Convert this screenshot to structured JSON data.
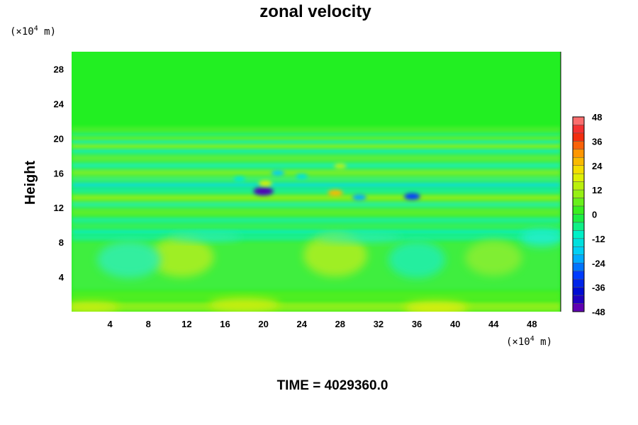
{
  "chart_data": {
    "type": "heatmap",
    "title": "zonal velocity",
    "xlabel": "",
    "ylabel": "Height",
    "x_unit": {
      "prefix": "(×10",
      "exponent": "4",
      "suffix": " m)"
    },
    "y_unit": {
      "prefix": "(×10",
      "exponent": "4",
      "suffix": " m)"
    },
    "xlim": [
      0,
      51
    ],
    "ylim": [
      0,
      30
    ],
    "x_ticks": [
      "4",
      "8",
      "12",
      "16",
      "20",
      "24",
      "28",
      "32",
      "36",
      "40",
      "44",
      "48"
    ],
    "y_ticks": [
      "4",
      "8",
      "12",
      "16",
      "20",
      "24",
      "28"
    ],
    "colorbar": {
      "min": -48,
      "max": 48,
      "step": 4,
      "labels": [
        "48",
        "36",
        "24",
        "12",
        "0",
        "-12",
        "-24",
        "-36",
        "-48"
      ]
    },
    "annotation": "TIME = 4029360.0",
    "features": [
      {
        "x": 20,
        "y": 13.9,
        "value": -45
      },
      {
        "x": 20.2,
        "y": 14.8,
        "value": 18
      },
      {
        "x": 21.5,
        "y": 16,
        "value": -18
      },
      {
        "x": 24,
        "y": 15.6,
        "value": -14
      },
      {
        "x": 27.5,
        "y": 13.7,
        "value": 26
      },
      {
        "x": 30,
        "y": 13.2,
        "value": -22
      },
      {
        "x": 35.5,
        "y": 13.3,
        "value": -30
      },
      {
        "x": 28,
        "y": 16.8,
        "value": 14
      },
      {
        "x": 17.5,
        "y": 15.3,
        "value": -12
      }
    ]
  }
}
